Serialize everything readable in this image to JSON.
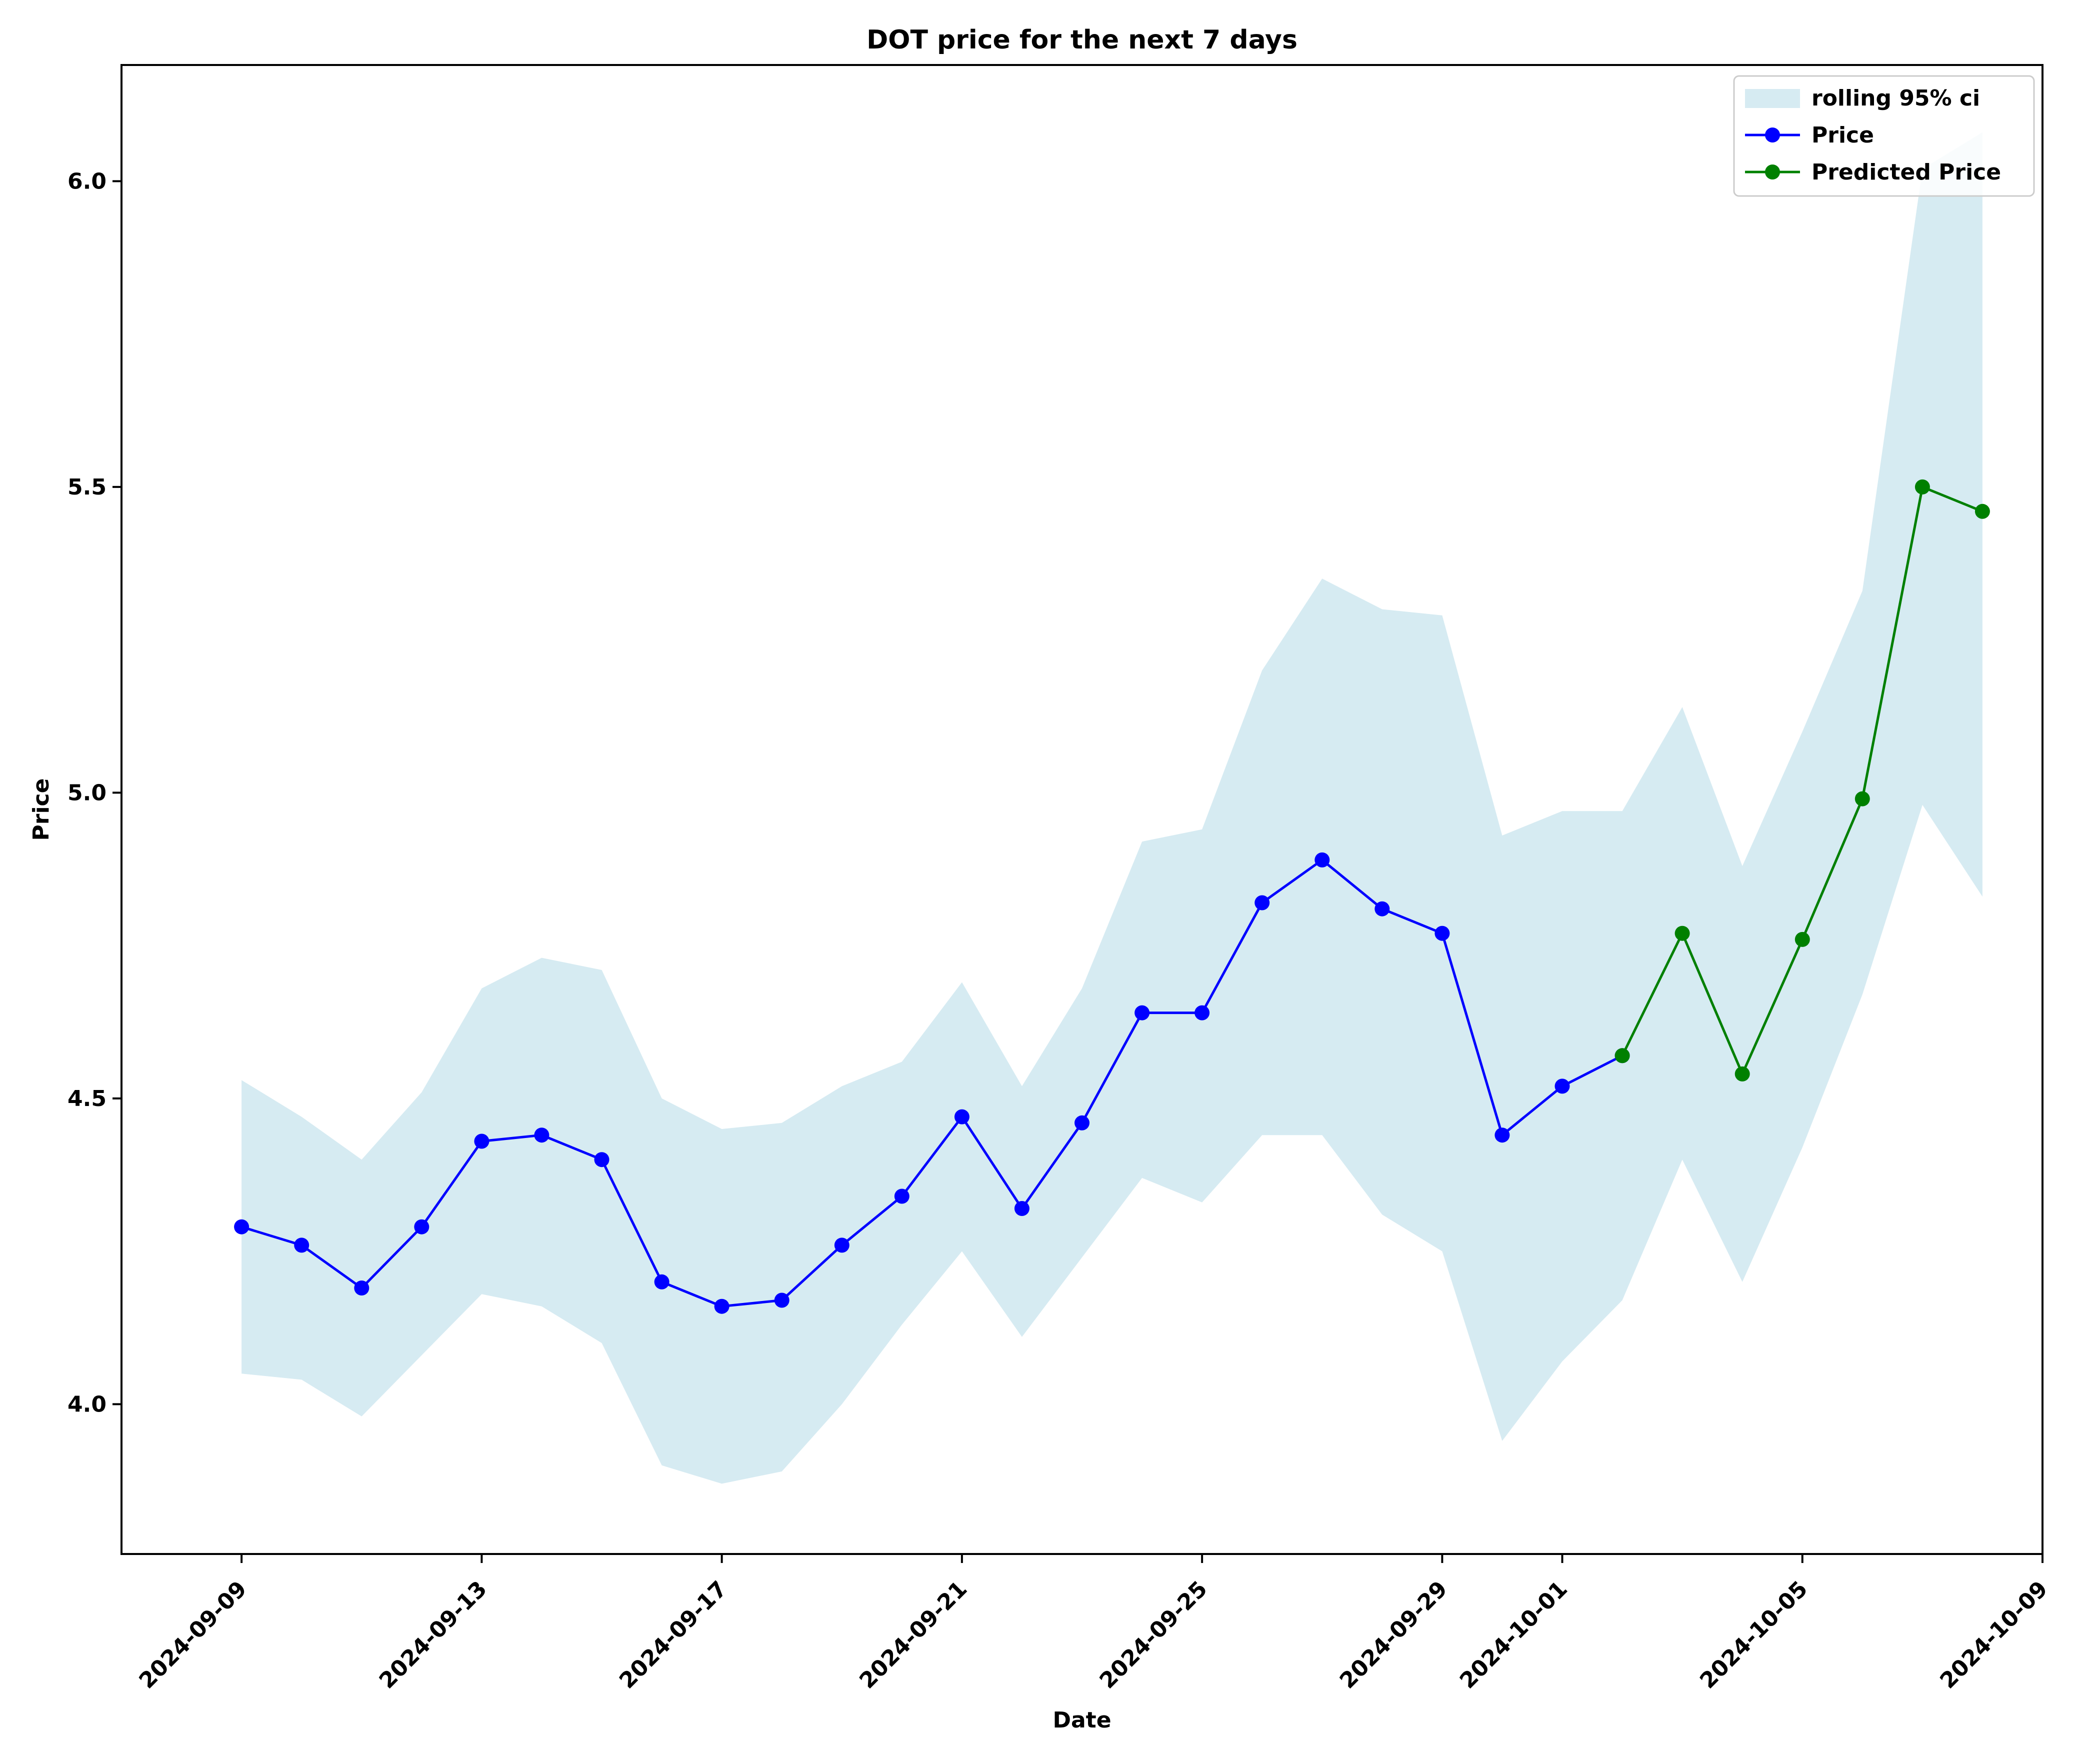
{
  "chart_data": {
    "type": "line",
    "title": "DOT price for the next 7 days",
    "xlabel": "Date",
    "ylabel": "Price",
    "x_range": [
      "2024-09-07",
      "2024-10-09"
    ],
    "ylim": [
      3.755,
      6.19
    ],
    "x_ticks": [
      "2024-09-09",
      "2024-09-13",
      "2024-09-17",
      "2024-09-21",
      "2024-09-25",
      "2024-09-29",
      "2024-10-01",
      "2024-10-05",
      "2024-10-09"
    ],
    "y_ticks": [
      "4.0",
      "4.5",
      "5.0",
      "5.5",
      "6.0"
    ],
    "legend_position": "top-right",
    "grid": false,
    "band": {
      "name": "rolling 95% ci",
      "color": "#add8e6",
      "x": [
        "2024-09-09",
        "2024-09-10",
        "2024-09-11",
        "2024-09-12",
        "2024-09-13",
        "2024-09-14",
        "2024-09-15",
        "2024-09-16",
        "2024-09-17",
        "2024-09-18",
        "2024-09-19",
        "2024-09-20",
        "2024-09-21",
        "2024-09-22",
        "2024-09-23",
        "2024-09-24",
        "2024-09-25",
        "2024-09-26",
        "2024-09-27",
        "2024-09-28",
        "2024-09-29",
        "2024-09-30",
        "2024-10-01",
        "2024-10-02",
        "2024-10-03",
        "2024-10-04",
        "2024-10-05",
        "2024-10-06",
        "2024-10-07",
        "2024-10-08"
      ],
      "upper": [
        4.53,
        4.47,
        4.4,
        4.51,
        4.68,
        4.73,
        4.71,
        4.5,
        4.45,
        4.46,
        4.52,
        4.56,
        4.69,
        4.52,
        4.68,
        4.92,
        4.94,
        5.2,
        5.35,
        5.3,
        5.29,
        4.93,
        4.97,
        4.97,
        5.14,
        4.88,
        5.1,
        5.33,
        6.02,
        6.08
      ],
      "lower": [
        4.05,
        4.04,
        3.98,
        4.08,
        4.18,
        4.16,
        4.1,
        3.9,
        3.87,
        3.89,
        4.0,
        4.13,
        4.25,
        4.11,
        4.24,
        4.37,
        4.33,
        4.44,
        4.44,
        4.31,
        4.25,
        3.94,
        4.07,
        4.17,
        4.4,
        4.2,
        4.42,
        4.67,
        4.98,
        4.83
      ]
    },
    "series": [
      {
        "name": "Price",
        "color": "#0000ff",
        "x": [
          "2024-09-09",
          "2024-09-10",
          "2024-09-11",
          "2024-09-12",
          "2024-09-13",
          "2024-09-14",
          "2024-09-15",
          "2024-09-16",
          "2024-09-17",
          "2024-09-18",
          "2024-09-19",
          "2024-09-20",
          "2024-09-21",
          "2024-09-22",
          "2024-09-23",
          "2024-09-24",
          "2024-09-25",
          "2024-09-26",
          "2024-09-27",
          "2024-09-28",
          "2024-09-29",
          "2024-09-30",
          "2024-10-01",
          "2024-10-02"
        ],
        "values": [
          4.29,
          4.26,
          4.19,
          4.29,
          4.43,
          4.44,
          4.4,
          4.2,
          4.16,
          4.17,
          4.26,
          4.34,
          4.47,
          4.32,
          4.46,
          4.64,
          4.64,
          4.82,
          4.89,
          4.81,
          4.77,
          4.44,
          4.52,
          4.57
        ]
      },
      {
        "name": "Predicted Price",
        "color": "#008000",
        "x": [
          "2024-10-02",
          "2024-10-03",
          "2024-10-04",
          "2024-10-05",
          "2024-10-06",
          "2024-10-07",
          "2024-10-08"
        ],
        "values": [
          4.57,
          4.77,
          4.54,
          4.76,
          4.99,
          5.5,
          5.46
        ]
      }
    ]
  }
}
